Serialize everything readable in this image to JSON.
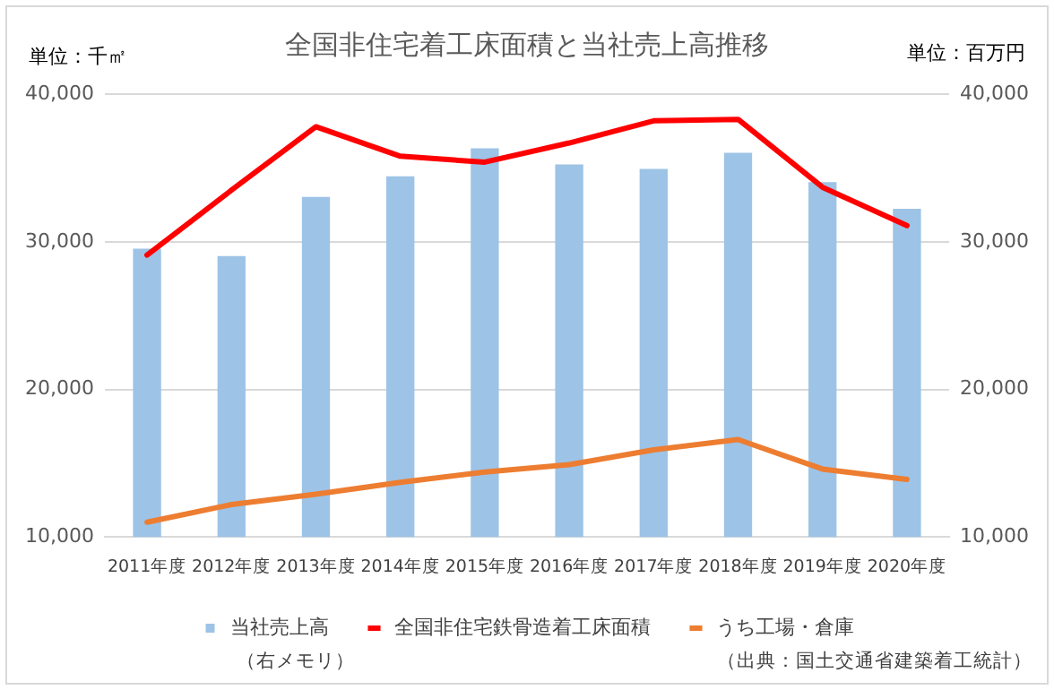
{
  "chart_data": {
    "type": "bar",
    "title": "全国非住宅着工床面積と当社売上高推移",
    "ylabel": "単位：千㎡",
    "y2label": "単位：百万円",
    "annotations": [
      "（右メモリ）",
      "（出典：国土交通省建築着工統計）"
    ],
    "categories": [
      "2011年度",
      "2012年度",
      "2013年度",
      "2014年度",
      "2015年度",
      "2016年度",
      "2017年度",
      "2018年度",
      "2019年度",
      "2020年度"
    ],
    "series": [
      {
        "name": "当社売上高",
        "axis": "y2",
        "color": "#9dc3e6",
        "values": [
          29500,
          29000,
          33000,
          34400,
          36300,
          35200,
          34900,
          36000,
          34000,
          32200
        ]
      },
      {
        "name": "全国非住宅鉄骨造着工床面積",
        "type": "line",
        "color": "#ff0000",
        "values": [
          29100,
          33500,
          37800,
          35800,
          35400,
          36700,
          38200,
          38300,
          33700,
          31100
        ]
      },
      {
        "name": "うち工場・倉庫",
        "type": "line",
        "color": "#ed7d31",
        "values": [
          11000,
          12200,
          12900,
          13700,
          14400,
          14900,
          15900,
          16600,
          14600,
          13900
        ]
      }
    ],
    "ylim": [
      10000,
      40000
    ],
    "yticks": [
      {
        "value": 10000,
        "label": "10,000"
      },
      {
        "value": 20000,
        "label": "20,000"
      },
      {
        "value": 30000,
        "label": "30,000"
      },
      {
        "value": 40000,
        "label": "40,000"
      }
    ],
    "y2lim": [
      10000,
      40000
    ],
    "y2ticks": [
      {
        "value": 10000,
        "label": "10,000"
      },
      {
        "value": 20000,
        "label": "20,000"
      },
      {
        "value": 30000,
        "label": "30,000"
      },
      {
        "value": 40000,
        "label": "40,000"
      }
    ],
    "grid": "y",
    "legend": "bottom",
    "marker": "none"
  }
}
